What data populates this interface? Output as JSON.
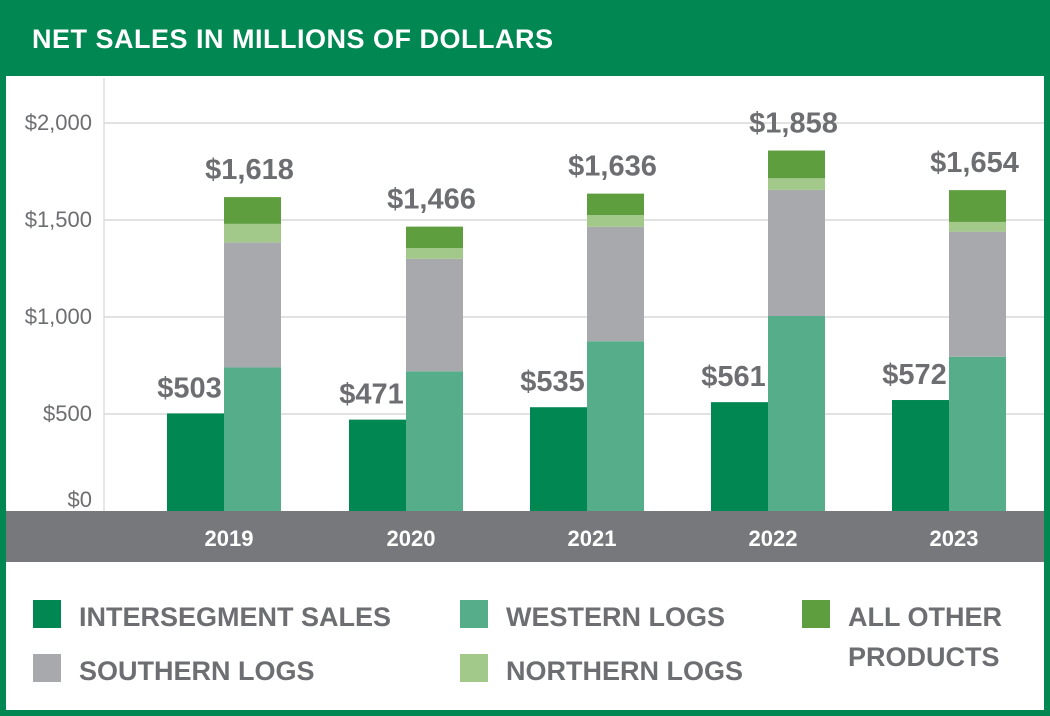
{
  "header": {
    "title": "NET SALES IN MILLIONS OF DOLLARS"
  },
  "legend": {
    "items": [
      {
        "label": "INTERSEGMENT SALES",
        "color": "#008752"
      },
      {
        "label": "WESTERN LOGS",
        "color": "#55ad8a"
      },
      {
        "label": "ALL OTHER PRODUCTS",
        "color": "#5e9e3f"
      },
      {
        "label": "SOUTHERN LOGS",
        "color": "#a7a9ac"
      },
      {
        "label": "NORTHERN LOGS",
        "color": "#a3c98a"
      }
    ]
  },
  "colors": {
    "brand": "#008752",
    "axis_band": "#76787b",
    "text_gray": "#6d6e71",
    "grid": "#d9d9d9"
  },
  "chart_data": {
    "type": "bar",
    "title": "NET SALES IN MILLIONS OF DOLLARS",
    "categories": [
      "2019",
      "2020",
      "2021",
      "2022",
      "2023"
    ],
    "ylim": [
      0,
      2250
    ],
    "yticks": [
      0,
      500,
      1000,
      1500,
      2000
    ],
    "ytick_labels": [
      "$0",
      "$500",
      "$1,000",
      "$1,500",
      "$2,000"
    ],
    "grid": true,
    "legend_position": "bottom",
    "intersegment": {
      "name": "INTERSEGMENT SALES",
      "values": [
        503,
        471,
        535,
        561,
        572
      ],
      "labels": [
        "$503",
        "$471",
        "$535",
        "$561",
        "$572"
      ]
    },
    "stacked": {
      "series": [
        {
          "name": "WESTERN LOGS",
          "values": [
            740,
            720,
            875,
            1005,
            795
          ]
        },
        {
          "name": "SOUTHERN LOGS",
          "values": [
            645,
            580,
            590,
            650,
            645
          ]
        },
        {
          "name": "NORTHERN LOGS",
          "values": [
            95,
            55,
            60,
            60,
            50
          ]
        },
        {
          "name": "ALL OTHER PRODUCTS",
          "values": [
            138,
            111,
            111,
            143,
            164
          ]
        }
      ],
      "totals": [
        1618,
        1466,
        1636,
        1858,
        1654
      ],
      "total_labels": [
        "$1,618",
        "$1,466",
        "$1,636",
        "$1,858",
        "$1,654"
      ]
    }
  }
}
